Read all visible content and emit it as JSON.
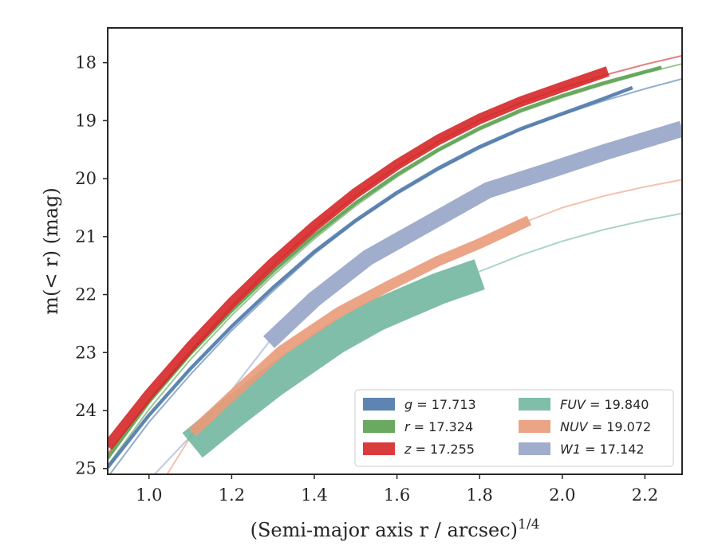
{
  "chart_data": {
    "type": "line",
    "xlabel": "(Semi-major axis r / arcsec)",
    "xlabel_sup": "1/4",
    "ylabel": "m(< r) (mag)",
    "xlim": [
      0.9,
      2.29
    ],
    "ylim": [
      25.1,
      17.4
    ],
    "y_inverted": true,
    "x_ticks": [
      1.0,
      1.2,
      1.4,
      1.6,
      1.8,
      2.0,
      2.2
    ],
    "x_tick_labels": [
      "1.0",
      "1.2",
      "1.4",
      "1.6",
      "1.8",
      "2.0",
      "2.2"
    ],
    "y_ticks": [
      18,
      19,
      20,
      21,
      22,
      23,
      24,
      25
    ],
    "y_tick_labels": [
      "18",
      "19",
      "20",
      "21",
      "22",
      "23",
      "24",
      "25"
    ],
    "grid": false,
    "legend_position": "lower-right",
    "series": [
      {
        "name": "g",
        "value": "17.713",
        "color": "#4c78a8",
        "band_width_mag": 0.06,
        "data_x": [
          0.9,
          1.0,
          1.1,
          1.2,
          1.3,
          1.4,
          1.5,
          1.6,
          1.7,
          1.8,
          1.9,
          2.0,
          2.1,
          2.17
        ],
        "data_y": [
          24.98,
          24.08,
          23.28,
          22.55,
          21.88,
          21.26,
          20.72,
          20.24,
          19.82,
          19.45,
          19.14,
          18.88,
          18.62,
          18.43
        ],
        "model_x": [
          0.9,
          1.0,
          1.1,
          1.2,
          1.3,
          1.4,
          1.5,
          1.6,
          1.7,
          1.8,
          1.9,
          2.0,
          2.1,
          2.2,
          2.29
        ],
        "model_y": [
          25.15,
          24.2,
          23.38,
          22.62,
          21.94,
          21.3,
          20.75,
          20.27,
          19.85,
          19.48,
          19.16,
          18.9,
          18.66,
          18.45,
          18.28
        ]
      },
      {
        "name": "r",
        "value": "17.324",
        "color": "#59a14f",
        "band_width_mag": 0.06,
        "data_x": [
          0.9,
          1.0,
          1.1,
          1.2,
          1.3,
          1.4,
          1.5,
          1.6,
          1.7,
          1.8,
          1.9,
          2.0,
          2.1,
          2.24
        ],
        "data_y": [
          24.82,
          23.85,
          23.02,
          22.28,
          21.6,
          20.98,
          20.42,
          19.93,
          19.5,
          19.13,
          18.82,
          18.57,
          18.35,
          18.08
        ],
        "model_x": [
          0.9,
          1.0,
          1.1,
          1.2,
          1.3,
          1.4,
          1.5,
          1.6,
          1.7,
          1.8,
          1.9,
          2.0,
          2.1,
          2.2,
          2.29
        ],
        "model_y": [
          24.95,
          23.98,
          23.12,
          22.36,
          21.67,
          21.04,
          20.47,
          19.97,
          19.53,
          19.16,
          18.85,
          18.6,
          18.38,
          18.18,
          18.02
        ]
      },
      {
        "name": "z",
        "value": "17.255",
        "color": "#d62728",
        "band_width_mag": 0.18,
        "data_x": [
          0.9,
          1.0,
          1.1,
          1.2,
          1.3,
          1.4,
          1.5,
          1.6,
          1.7,
          1.8,
          1.9,
          2.0,
          2.11
        ],
        "data_y": [
          24.62,
          23.72,
          22.9,
          22.14,
          21.45,
          20.82,
          20.25,
          19.76,
          19.33,
          18.97,
          18.67,
          18.42,
          18.15
        ],
        "model_x": [
          0.9,
          1.0,
          1.1,
          1.2,
          1.3,
          1.4,
          1.5,
          1.6,
          1.7,
          1.8,
          1.9,
          2.0,
          2.1,
          2.2,
          2.29
        ],
        "model_y": [
          24.75,
          23.82,
          22.97,
          22.2,
          21.5,
          20.86,
          20.29,
          19.79,
          19.36,
          18.99,
          18.69,
          18.44,
          18.22,
          18.03,
          17.88
        ]
      },
      {
        "name": "FUV",
        "value": "19.840",
        "color": "#72b7a0",
        "band_width_mag": 0.55,
        "data_x": [
          1.105,
          1.2,
          1.3,
          1.45,
          1.55,
          1.7,
          1.8
        ],
        "data_y": [
          24.6,
          24.05,
          23.5,
          22.76,
          22.36,
          21.9,
          21.65
        ],
        "model_x": [
          1.8,
          1.9,
          2.0,
          2.1,
          2.2,
          2.29
        ],
        "model_y": [
          21.6,
          21.32,
          21.08,
          20.88,
          20.72,
          20.6
        ]
      },
      {
        "name": "NUV",
        "value": "19.072",
        "color": "#e99a79",
        "band_width_mag": 0.18,
        "data_x": [
          1.105,
          1.2,
          1.32,
          1.46,
          1.58,
          1.7,
          1.8,
          1.92
        ],
        "data_y": [
          24.38,
          23.75,
          22.97,
          22.3,
          21.85,
          21.42,
          21.12,
          20.72
        ],
        "model_x": [
          1.035,
          1.105,
          1.92,
          2.0,
          2.1,
          2.2,
          2.29
        ],
        "model_y": [
          25.2,
          24.4,
          20.72,
          20.5,
          20.3,
          20.14,
          20.02
        ],
        "model_split": 2
      },
      {
        "name": "W1",
        "value": "17.142",
        "color": "#96a4c7",
        "band_width_mag": 0.28,
        "data_x": [
          1.29,
          1.4,
          1.53,
          1.69,
          1.82,
          1.96,
          2.1,
          2.29
        ],
        "data_y": [
          22.82,
          22.08,
          21.36,
          20.72,
          20.2,
          19.88,
          19.55,
          19.14
        ],
        "model_x": [
          1.0,
          1.1,
          1.2,
          1.29
        ],
        "model_y": [
          25.2,
          24.45,
          23.65,
          22.82
        ]
      }
    ],
    "legend_columns": [
      [
        "g",
        "r",
        "z"
      ],
      [
        "FUV",
        "NUV",
        "W1"
      ]
    ]
  }
}
